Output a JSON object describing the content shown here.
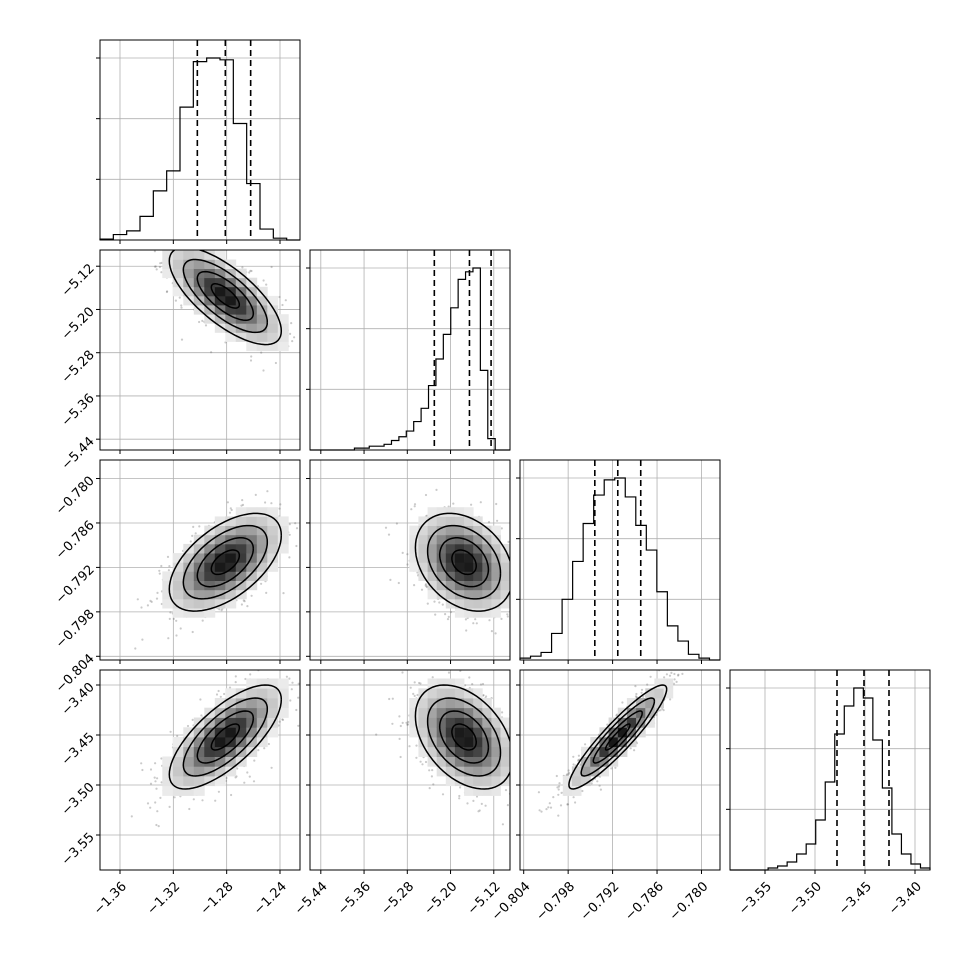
{
  "chart_data": {
    "type": "corner",
    "grid": true,
    "colors": {
      "line": "#000000",
      "grid": "#b0b0b0",
      "scatter": "#666666"
    },
    "parameters": [
      {
        "id": "p0",
        "range": [
          -1.375,
          -1.225
        ],
        "ticks": [
          -1.36,
          -1.32,
          -1.28,
          -1.24
        ],
        "tick_labels": [
          "−1.36",
          "−1.32",
          "−1.28",
          "−1.24"
        ],
        "mean": -1.281,
        "sd": 0.021,
        "quantiles": [
          -1.302,
          -1.281,
          -1.262
        ],
        "hist_counts": [
          0.5,
          3,
          5,
          13,
          27,
          38,
          73,
          98,
          100,
          99,
          64,
          31,
          6,
          1,
          0
        ]
      },
      {
        "id": "p1",
        "range": [
          -5.46,
          -5.09
        ],
        "ticks": [
          -5.44,
          -5.36,
          -5.28,
          -5.2,
          -5.12
        ],
        "tick_labels": [
          "−5.44",
          "−5.36",
          "−5.28",
          "−5.20",
          "−5.12"
        ],
        "mean": -5.175,
        "sd": 0.045,
        "quantiles": [
          -5.23,
          -5.165,
          -5.125
        ],
        "hist_counts": [
          0,
          0,
          0,
          0,
          0,
          0,
          1,
          1,
          2,
          2,
          3,
          5,
          7,
          10,
          15,
          22,
          34,
          48,
          61,
          75,
          90,
          94,
          96,
          42,
          6,
          0,
          0
        ]
      },
      {
        "id": "p2",
        "range": [
          -0.8045,
          -0.7775
        ],
        "ticks": [
          -0.804,
          -0.798,
          -0.792,
          -0.786,
          -0.78
        ],
        "tick_labels": [
          "−0.804",
          "−0.798",
          "−0.792",
          "−0.786",
          "−0.780"
        ],
        "mean": -0.7913,
        "sd": 0.0033,
        "quantiles": [
          -0.7944,
          -0.7913,
          -0.7882
        ],
        "hist_counts": [
          1,
          2,
          4,
          14,
          32,
          52,
          72,
          87,
          95,
          96,
          86,
          71,
          58,
          36,
          18,
          10,
          3,
          1,
          0
        ]
      },
      {
        "id": "p3",
        "range": [
          -3.585,
          -3.385
        ],
        "ticks": [
          -3.55,
          -3.5,
          -3.45,
          -3.4
        ],
        "tick_labels": [
          "−3.55",
          "−3.50",
          "−3.45",
          "−3.40"
        ],
        "mean": -3.452,
        "sd": 0.026,
        "quantiles": [
          -3.478,
          -3.451,
          -3.426
        ],
        "hist_counts": [
          0,
          0,
          0,
          0,
          1,
          2,
          4,
          8,
          13,
          25,
          44,
          68,
          82,
          91,
          86,
          65,
          41,
          18,
          8,
          3,
          1
        ]
      }
    ],
    "correlations": [
      {
        "pair": [
          0,
          1
        ],
        "r": -0.72
      },
      {
        "pair": [
          0,
          2
        ],
        "r": 0.55
      },
      {
        "pair": [
          1,
          2
        ],
        "r": -0.3
      },
      {
        "pair": [
          0,
          3
        ],
        "r": 0.72
      },
      {
        "pair": [
          1,
          3
        ],
        "r": -0.4
      },
      {
        "pair": [
          2,
          3
        ],
        "r": 0.92
      }
    ]
  }
}
